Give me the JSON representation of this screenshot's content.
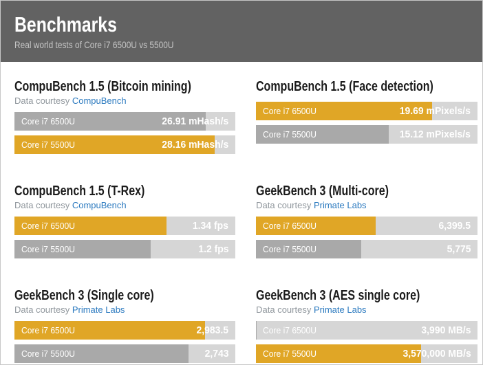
{
  "header": {
    "title": "Benchmarks",
    "subtitle": "Real world tests of Core i7 6500U vs 5500U"
  },
  "colors": {
    "gold": "#e0a626",
    "gray": "#a9a9a9",
    "track": "#d6d6d6",
    "header_bg": "#626262",
    "link": "#2a79bf"
  },
  "sections": [
    {
      "title": "CompuBench 1.5 (Bitcoin mining)",
      "courtesy_prefix": "Data courtesy ",
      "courtesy_link": "CompuBench",
      "bars": [
        {
          "label": "Core i7 6500U",
          "value": "26.91 mHash/s",
          "color": "gray",
          "fill_pct": 86.6
        },
        {
          "label": "Core i7 5500U",
          "value": "28.16 mHash/s",
          "color": "gold",
          "fill_pct": 90.5
        }
      ]
    },
    {
      "title": "CompuBench 1.5 (Face detection)",
      "courtesy_prefix": "",
      "courtesy_link": "",
      "bars": [
        {
          "label": "Core i7 6500U",
          "value": "19.69 mPixels/s",
          "color": "gold",
          "fill_pct": 79.5
        },
        {
          "label": "Core i7 5500U",
          "value": "15.12 mPixels/s",
          "color": "gray",
          "fill_pct": 60
        }
      ]
    },
    {
      "title": "CompuBench 1.5 (T-Rex)",
      "courtesy_prefix": "Data courtesy ",
      "courtesy_link": "CompuBench",
      "bars": [
        {
          "label": "Core i7 6500U",
          "value": "1.34 fps",
          "color": "gold",
          "fill_pct": 68.7
        },
        {
          "label": "Core i7 5500U",
          "value": "1.2 fps",
          "color": "gray",
          "fill_pct": 61.8
        }
      ]
    },
    {
      "title": "GeekBench 3 (Multi-core)",
      "courtesy_prefix": "Data courtesy ",
      "courtesy_link": "Primate Labs",
      "bars": [
        {
          "label": "Core i7 6500U",
          "value": "6,399.5",
          "color": "gold",
          "fill_pct": 54
        },
        {
          "label": "Core i7 5500U",
          "value": "5,775",
          "color": "gray",
          "fill_pct": 47.5
        }
      ]
    },
    {
      "title": "GeekBench 3 (Single core)",
      "courtesy_prefix": "Data courtesy ",
      "courtesy_link": "Primate Labs",
      "bars": [
        {
          "label": "Core i7 6500U",
          "value": "2,983.5",
          "color": "gold",
          "fill_pct": 86.2
        },
        {
          "label": "Core i7 5500U",
          "value": "2,743",
          "color": "gray",
          "fill_pct": 78.8
        }
      ]
    },
    {
      "title": "GeekBench 3 (AES single core)",
      "courtesy_prefix": "Data courtesy ",
      "courtesy_link": "Primate Labs",
      "bars": [
        {
          "label": "Core i7 6500U",
          "value": "3,990 MB/s",
          "color": "gray",
          "fill_pct": 0.1
        },
        {
          "label": "Core i7 5500U",
          "value": "3,570,000 MB/s",
          "color": "gold",
          "fill_pct": 74.3
        }
      ]
    }
  ],
  "chart_data": [
    {
      "type": "bar",
      "orientation": "horizontal",
      "title": "CompuBench 1.5 (Bitcoin mining)",
      "source": "CompuBench",
      "categories": [
        "Core i7 6500U",
        "Core i7 5500U"
      ],
      "values": [
        26.91,
        28.16
      ],
      "unit": "mHash/s",
      "highlighted_category": "Core i7 5500U",
      "highlight_color": "#e0a626",
      "other_color": "#a9a9a9"
    },
    {
      "type": "bar",
      "orientation": "horizontal",
      "title": "CompuBench 1.5 (Face detection)",
      "source": "",
      "categories": [
        "Core i7 6500U",
        "Core i7 5500U"
      ],
      "values": [
        19.69,
        15.12
      ],
      "unit": "mPixels/s",
      "highlighted_category": "Core i7 6500U",
      "highlight_color": "#e0a626",
      "other_color": "#a9a9a9"
    },
    {
      "type": "bar",
      "orientation": "horizontal",
      "title": "CompuBench 1.5 (T-Rex)",
      "source": "CompuBench",
      "categories": [
        "Core i7 6500U",
        "Core i7 5500U"
      ],
      "values": [
        1.34,
        1.2
      ],
      "unit": "fps",
      "highlighted_category": "Core i7 6500U",
      "highlight_color": "#e0a626",
      "other_color": "#a9a9a9"
    },
    {
      "type": "bar",
      "orientation": "horizontal",
      "title": "GeekBench 3 (Multi-core)",
      "source": "Primate Labs",
      "categories": [
        "Core i7 6500U",
        "Core i7 5500U"
      ],
      "values": [
        6399.5,
        5775
      ],
      "unit": "",
      "highlighted_category": "Core i7 6500U",
      "highlight_color": "#e0a626",
      "other_color": "#a9a9a9"
    },
    {
      "type": "bar",
      "orientation": "horizontal",
      "title": "GeekBench 3 (Single core)",
      "source": "Primate Labs",
      "categories": [
        "Core i7 6500U",
        "Core i7 5500U"
      ],
      "values": [
        2983.5,
        2743
      ],
      "unit": "",
      "highlighted_category": "Core i7 6500U",
      "highlight_color": "#e0a626",
      "other_color": "#a9a9a9"
    },
    {
      "type": "bar",
      "orientation": "horizontal",
      "title": "GeekBench 3 (AES single core)",
      "source": "Primate Labs",
      "categories": [
        "Core i7 6500U",
        "Core i7 5500U"
      ],
      "values": [
        3990,
        3570000
      ],
      "unit": "MB/s",
      "highlighted_category": "Core i7 5500U",
      "highlight_color": "#e0a626",
      "other_color": "#a9a9a9"
    }
  ]
}
